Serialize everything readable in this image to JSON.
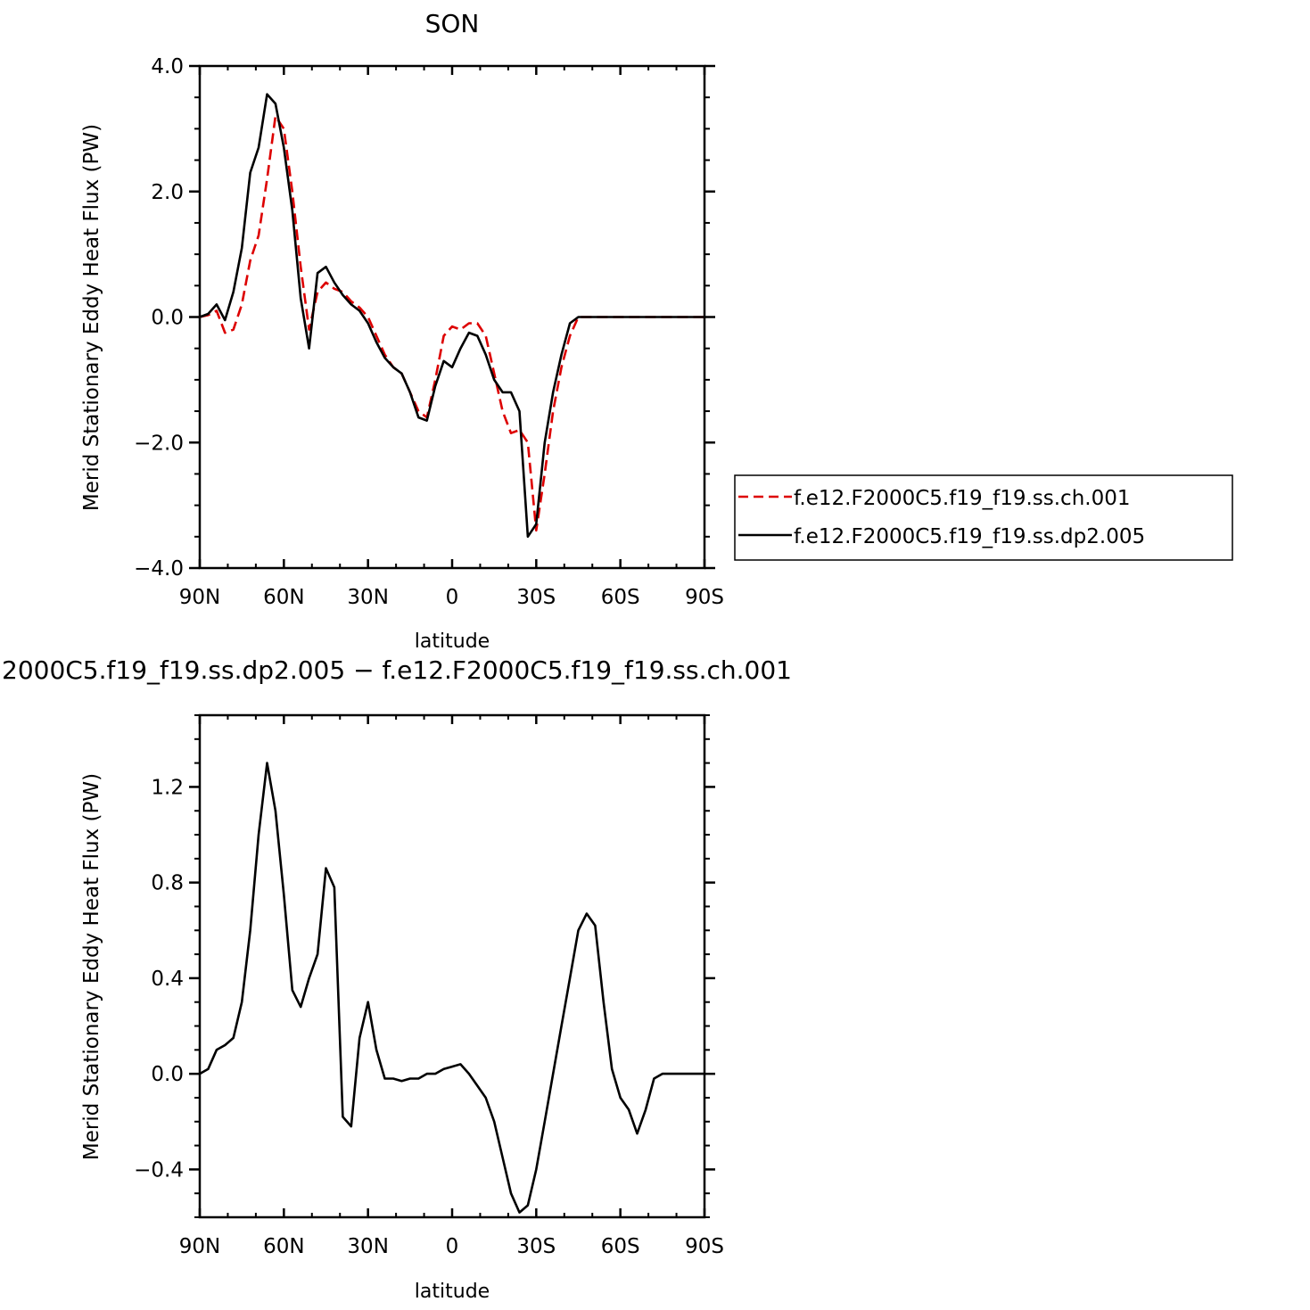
{
  "chart_data": [
    {
      "type": "line",
      "title": "SON",
      "xlabel": "latitude",
      "ylabel": "Merid Stationary Eddy Heat Flux (PW)",
      "xlim": [
        -90,
        90
      ],
      "ylim": [
        -4.0,
        4.0
      ],
      "x_ticks": [
        -90,
        -60,
        -30,
        0,
        30,
        60,
        90
      ],
      "x_tick_labels": [
        "90N",
        "60N",
        "30N",
        "0",
        "30S",
        "60S",
        "90S"
      ],
      "y_ticks": [
        4.0,
        2.0,
        0.0,
        -2.0,
        -4.0
      ],
      "y_tick_labels": [
        "4.0",
        "2.0",
        "0.0",
        "−2.0",
        "−4.0"
      ],
      "legend_position": "right",
      "x": [
        -90,
        -87,
        -84,
        -81,
        -78,
        -75,
        -72,
        -69,
        -66,
        -63,
        -60,
        -57,
        -54,
        -51,
        -48,
        -45,
        -42,
        -39,
        -36,
        -33,
        -30,
        -27,
        -24,
        -21,
        -18,
        -15,
        -12,
        -9,
        -6,
        -3,
        0,
        3,
        6,
        9,
        12,
        15,
        18,
        21,
        24,
        27,
        30,
        33,
        36,
        39,
        42,
        45,
        48,
        51,
        54,
        57,
        60,
        63,
        66,
        69,
        72,
        75,
        78,
        81,
        84,
        87,
        90
      ],
      "series": [
        {
          "name": "f.e12.F2000C5.f19_f19.ss.ch.001",
          "color": "#dd0000",
          "dash": true,
          "values": [
            0.0,
            0.03,
            0.1,
            -0.25,
            -0.2,
            0.2,
            0.9,
            1.3,
            2.2,
            3.2,
            3.0,
            2.0,
            0.8,
            -0.2,
            0.4,
            0.55,
            0.45,
            0.4,
            0.25,
            0.15,
            0.0,
            -0.3,
            -0.6,
            -0.8,
            -0.9,
            -1.2,
            -1.5,
            -1.6,
            -1.0,
            -0.3,
            -0.15,
            -0.2,
            -0.1,
            -0.1,
            -0.3,
            -0.9,
            -1.5,
            -1.85,
            -1.8,
            -2.0,
            -3.4,
            -2.5,
            -1.5,
            -0.8,
            -0.3,
            0.0,
            0.0,
            0.0,
            0.0,
            0.0,
            0.0,
            0.0,
            0.0,
            0.0,
            0.0,
            0.0,
            0.0,
            0.0,
            0.0,
            0.0,
            0.0
          ]
        },
        {
          "name": "f.e12.F2000C5.f19_f19.ss.dp2.005",
          "color": "#000000",
          "dash": false,
          "values": [
            0.0,
            0.05,
            0.2,
            -0.05,
            0.4,
            1.1,
            2.3,
            2.7,
            3.55,
            3.4,
            2.7,
            1.7,
            0.3,
            -0.5,
            0.7,
            0.8,
            0.55,
            0.35,
            0.2,
            0.1,
            -0.1,
            -0.4,
            -0.65,
            -0.8,
            -0.9,
            -1.2,
            -1.6,
            -1.65,
            -1.1,
            -0.7,
            -0.8,
            -0.5,
            -0.25,
            -0.3,
            -0.6,
            -1.0,
            -1.2,
            -1.2,
            -1.5,
            -3.5,
            -3.3,
            -2.0,
            -1.2,
            -0.6,
            -0.1,
            0.0,
            0.0,
            0.0,
            0.0,
            0.0,
            0.0,
            0.0,
            0.0,
            0.0,
            0.0,
            0.0,
            0.0,
            0.0,
            0.0,
            0.0,
            0.0
          ]
        }
      ]
    },
    {
      "type": "line",
      "title": "2000C5.f19_f19.ss.dp2.005 − f.e12.F2000C5.f19_f19.ss.ch.001",
      "xlabel": "latitude",
      "ylabel": "Merid Stationary Eddy Heat Flux (PW)",
      "xlim": [
        -90,
        90
      ],
      "ylim": [
        -0.6,
        1.5
      ],
      "x_ticks": [
        -90,
        -60,
        -30,
        0,
        30,
        60,
        90
      ],
      "x_tick_labels": [
        "90N",
        "60N",
        "30N",
        "0",
        "30S",
        "60S",
        "90S"
      ],
      "y_ticks": [
        1.2,
        0.8,
        0.4,
        0.0,
        -0.4
      ],
      "y_tick_labels": [
        "1.2",
        "0.8",
        "0.4",
        "0.0",
        "−0.4"
      ],
      "x": [
        -90,
        -87,
        -84,
        -81,
        -78,
        -75,
        -72,
        -69,
        -66,
        -63,
        -60,
        -57,
        -54,
        -51,
        -48,
        -45,
        -42,
        -39,
        -36,
        -33,
        -30,
        -27,
        -24,
        -21,
        -18,
        -15,
        -12,
        -9,
        -6,
        -3,
        0,
        3,
        6,
        9,
        12,
        15,
        18,
        21,
        24,
        27,
        30,
        33,
        36,
        39,
        42,
        45,
        48,
        51,
        54,
        57,
        60,
        63,
        66,
        69,
        72,
        75,
        78,
        81,
        84,
        87,
        90
      ],
      "series": [
        {
          "color": "#000000",
          "values": [
            0.0,
            0.02,
            0.1,
            0.12,
            0.15,
            0.3,
            0.6,
            1.0,
            1.3,
            1.1,
            0.75,
            0.35,
            0.28,
            0.4,
            0.5,
            0.86,
            0.78,
            -0.18,
            -0.22,
            0.15,
            0.3,
            0.1,
            -0.02,
            -0.02,
            -0.03,
            -0.02,
            -0.02,
            0.0,
            0.0,
            0.02,
            0.03,
            0.04,
            0.0,
            -0.05,
            -0.1,
            -0.2,
            -0.35,
            -0.5,
            -0.58,
            -0.55,
            -0.4,
            -0.2,
            0.0,
            0.2,
            0.4,
            0.6,
            0.67,
            0.62,
            0.3,
            0.02,
            -0.1,
            -0.15,
            -0.25,
            -0.15,
            -0.02,
            0.0,
            0.0,
            0.0,
            0.0,
            0.0,
            0.0
          ]
        }
      ]
    }
  ]
}
